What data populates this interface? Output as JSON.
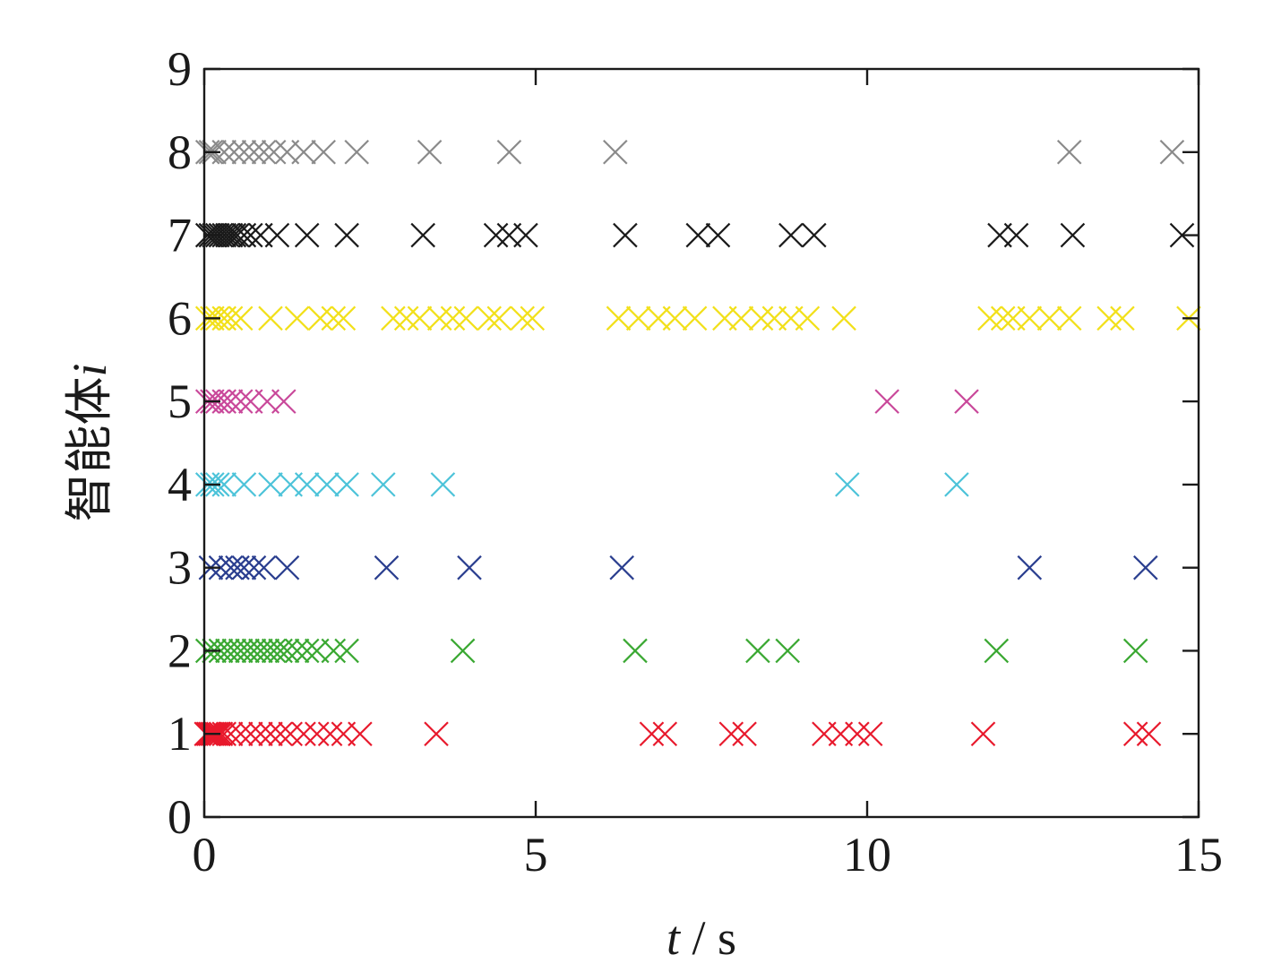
{
  "chart_data": {
    "type": "scatter",
    "marker": "x",
    "title": "",
    "xlabel_var": "t",
    "xlabel_sep": " / ",
    "xlabel_unit": "s",
    "ylabel_text": "智能体",
    "ylabel_var": "i",
    "xlim": [
      0,
      15
    ],
    "ylim": [
      0,
      9
    ],
    "xticks": [
      "0",
      "5",
      "10",
      "15"
    ],
    "yticks": [
      "0",
      "1",
      "2",
      "3",
      "4",
      "5",
      "6",
      "7",
      "8",
      "9"
    ],
    "grid": false,
    "legend": false,
    "series": [
      {
        "y": 1,
        "color": "#e8192c",
        "x": [
          0.03,
          0.06,
          0.09,
          0.12,
          0.15,
          0.18,
          0.21,
          0.25,
          0.3,
          0.4,
          0.55,
          0.7,
          0.85,
          1.0,
          1.15,
          1.3,
          1.5,
          1.7,
          1.9,
          2.1,
          2.35,
          3.5,
          6.75,
          6.95,
          7.95,
          8.15,
          9.35,
          9.6,
          9.85,
          10.05,
          11.75,
          14.05,
          14.25
        ]
      },
      {
        "y": 2,
        "color": "#3aa832",
        "x": [
          0.05,
          0.15,
          0.25,
          0.35,
          0.45,
          0.55,
          0.65,
          0.75,
          0.85,
          0.95,
          1.05,
          1.15,
          1.25,
          1.4,
          1.55,
          1.7,
          1.95,
          2.15,
          3.9,
          6.5,
          8.35,
          8.8,
          11.95,
          14.05
        ]
      },
      {
        "y": 3,
        "color": "#2a3e8f",
        "x": [
          0.1,
          0.25,
          0.4,
          0.5,
          0.6,
          0.75,
          0.9,
          1.25,
          2.75,
          4.0,
          6.3,
          12.45,
          14.2
        ]
      },
      {
        "y": 4,
        "color": "#4cc3d9",
        "x": [
          0.05,
          0.12,
          0.2,
          0.3,
          0.6,
          1.0,
          1.3,
          1.55,
          1.85,
          2.15,
          2.7,
          3.6,
          9.7,
          11.35
        ]
      },
      {
        "y": 5,
        "color": "#c9489a",
        "x": [
          0.05,
          0.12,
          0.2,
          0.3,
          0.4,
          0.55,
          0.7,
          0.95,
          1.2,
          10.3,
          11.5
        ]
      },
      {
        "y": 6,
        "color": "#f2e01a",
        "x": [
          0.05,
          0.12,
          0.2,
          0.3,
          0.4,
          0.55,
          1.0,
          1.4,
          1.75,
          1.95,
          2.1,
          2.85,
          3.05,
          3.25,
          3.55,
          3.75,
          3.95,
          4.3,
          4.45,
          4.8,
          4.95,
          6.25,
          6.55,
          6.85,
          7.1,
          7.4,
          7.85,
          8.1,
          8.4,
          8.6,
          8.85,
          9.1,
          9.65,
          11.85,
          12.05,
          12.2,
          12.45,
          12.75,
          13.05,
          13.65,
          13.85,
          14.85
        ]
      },
      {
        "y": 7,
        "color": "#1a1a1a",
        "x": [
          0.05,
          0.1,
          0.15,
          0.2,
          0.25,
          0.3,
          0.35,
          0.4,
          0.45,
          0.5,
          0.6,
          0.7,
          0.85,
          1.1,
          1.55,
          2.15,
          3.3,
          4.4,
          4.6,
          4.85,
          6.35,
          7.45,
          7.75,
          8.85,
          9.2,
          12.0,
          12.25,
          13.1,
          14.75
        ]
      },
      {
        "y": 8,
        "color": "#8a8a8a",
        "x": [
          0.05,
          0.1,
          0.15,
          0.3,
          0.45,
          0.6,
          0.75,
          0.9,
          1.05,
          1.25,
          1.5,
          1.8,
          2.3,
          3.4,
          4.6,
          6.2,
          13.05,
          14.6
        ]
      }
    ]
  }
}
